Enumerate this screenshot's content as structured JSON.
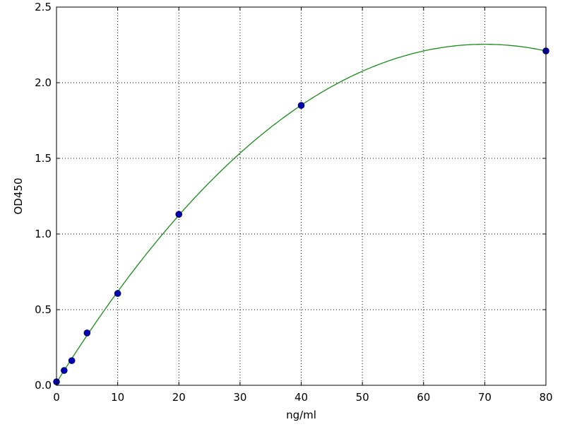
{
  "chart_data": {
    "type": "scatter",
    "title": "",
    "xlabel": "ng/ml",
    "ylabel": "OD450",
    "xlim": [
      0,
      80
    ],
    "ylim": [
      0,
      2.5
    ],
    "xticks": [
      "0",
      "10",
      "20",
      "30",
      "40",
      "50",
      "60",
      "70",
      "80"
    ],
    "yticks": [
      "0.0",
      "0.5",
      "1.0",
      "1.5",
      "2.0",
      "2.5"
    ],
    "grid": true,
    "points": {
      "x": [
        0,
        1.25,
        2.5,
        5,
        10,
        20,
        40,
        80
      ],
      "y": [
        0.023,
        0.098,
        0.163,
        0.346,
        0.607,
        1.13,
        1.85,
        2.21
      ],
      "color": "#0000b0"
    },
    "fit_curve": {
      "color": "#1a8a1a"
    }
  }
}
